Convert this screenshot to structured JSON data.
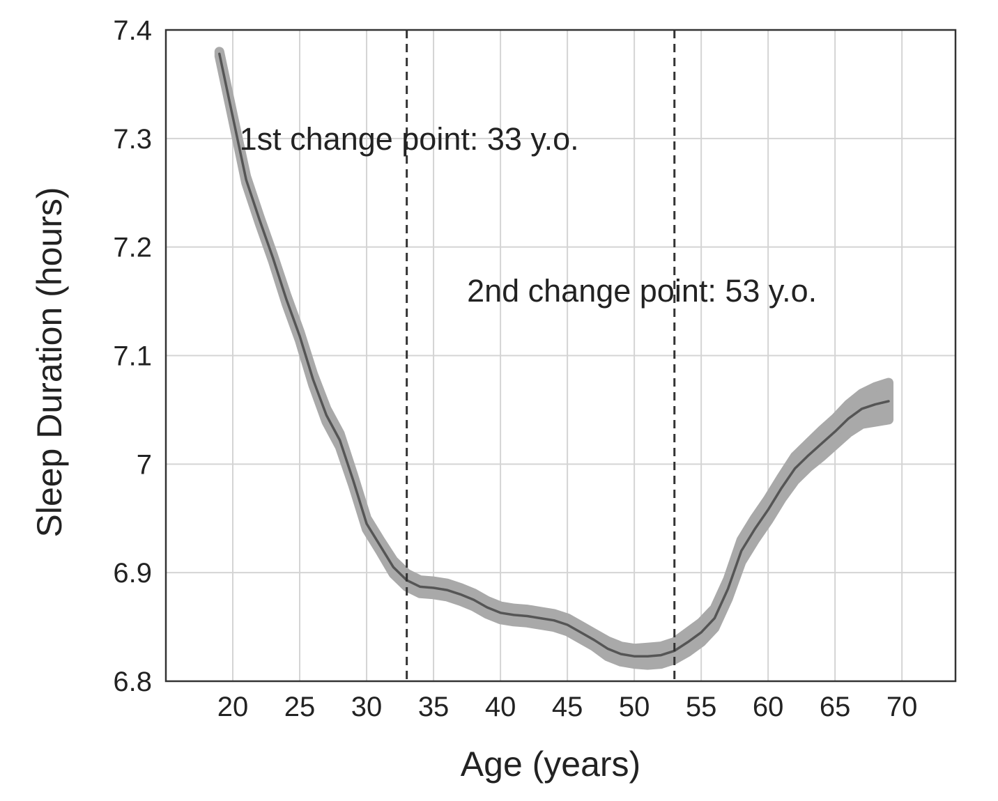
{
  "chart_data": {
    "type": "line",
    "title": "",
    "xlabel": "Age (years)",
    "ylabel": "Sleep Duration (hours)",
    "xlim": [
      15,
      74
    ],
    "ylim": [
      6.8,
      7.4
    ],
    "x_ticks": [
      20,
      25,
      30,
      35,
      40,
      45,
      50,
      55,
      60,
      65,
      70
    ],
    "y_ticks": [
      6.8,
      6.9,
      7,
      7.1,
      7.2,
      7.3,
      7.4
    ],
    "y_tick_labels": [
      "6.8",
      "6.9",
      "7",
      "7.1",
      "7.2",
      "7.3",
      "7.4"
    ],
    "grid": true,
    "legend": null,
    "series": [
      {
        "color": "#555555",
        "band_color": "#a9a9a9",
        "x": [
          19,
          20,
          21,
          22,
          23,
          24,
          25,
          26,
          27,
          28,
          29,
          30,
          31,
          32,
          33,
          34,
          35,
          36,
          37,
          38,
          39,
          40,
          41,
          42,
          43,
          44,
          45,
          46,
          47,
          48,
          49,
          50,
          51,
          52,
          53,
          54,
          55,
          56,
          57,
          58,
          59,
          60,
          61,
          62,
          63,
          64,
          65,
          66,
          67,
          68,
          69
        ],
        "y": [
          7.378,
          7.32,
          7.262,
          7.225,
          7.19,
          7.152,
          7.118,
          7.078,
          7.045,
          7.022,
          6.985,
          6.945,
          6.925,
          6.905,
          6.893,
          6.887,
          6.886,
          6.884,
          6.88,
          6.875,
          6.868,
          6.863,
          6.861,
          6.86,
          6.858,
          6.856,
          6.852,
          6.845,
          6.838,
          6.83,
          6.825,
          6.823,
          6.823,
          6.824,
          6.828,
          6.836,
          6.845,
          6.858,
          6.885,
          6.92,
          6.94,
          6.958,
          6.978,
          6.996,
          7.008,
          7.019,
          7.03,
          7.042,
          7.051,
          7.055,
          7.058
        ],
        "ci_halfwidth": [
          0.002,
          0.002,
          0.003,
          0.003,
          0.003,
          0.004,
          0.004,
          0.005,
          0.006,
          0.006,
          0.005,
          0.005,
          0.005,
          0.006,
          0.006,
          0.006,
          0.006,
          0.006,
          0.006,
          0.006,
          0.006,
          0.006,
          0.006,
          0.006,
          0.006,
          0.006,
          0.006,
          0.006,
          0.006,
          0.007,
          0.007,
          0.007,
          0.008,
          0.008,
          0.008,
          0.009,
          0.009,
          0.009,
          0.009,
          0.01,
          0.01,
          0.01,
          0.01,
          0.011,
          0.011,
          0.012,
          0.012,
          0.013,
          0.014,
          0.016,
          0.017
        ]
      }
    ],
    "vlines": [
      {
        "x": 33,
        "style": "dashed",
        "color": "#333333"
      },
      {
        "x": 53,
        "style": "dashed",
        "color": "#333333"
      }
    ],
    "annotations": [
      {
        "text": "1st change point: 33 y.o.",
        "x": 20.5,
        "y": 7.3
      },
      {
        "text": "2nd change point: 53 y.o.",
        "x": 37.5,
        "y": 7.16
      }
    ]
  }
}
